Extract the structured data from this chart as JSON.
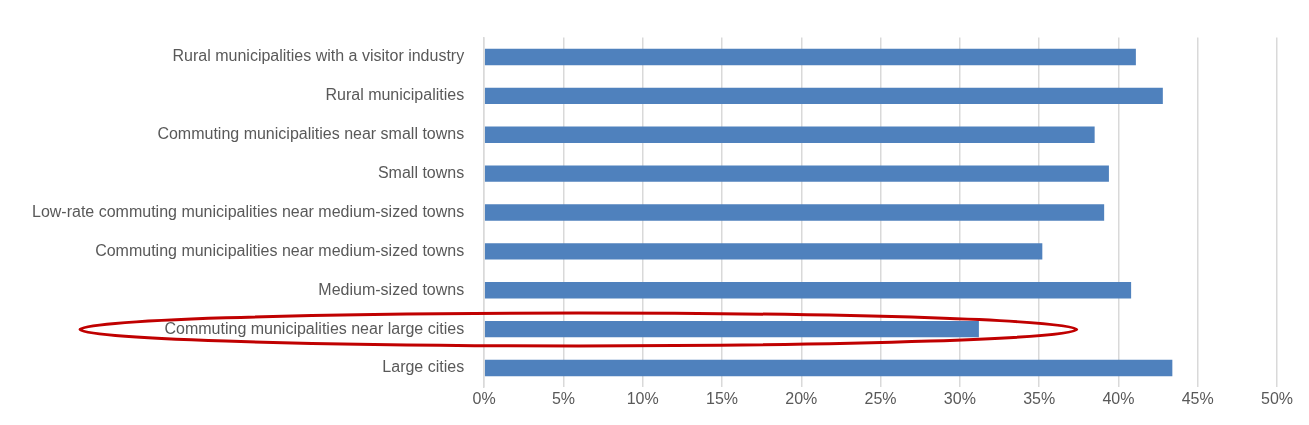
{
  "chart_data": {
    "type": "bar",
    "orientation": "horizontal",
    "categories": [
      "Rural municipalities with a visitor industry",
      "Rural municipalities",
      "Commuting municipalities near small towns",
      "Small towns",
      "Low-rate commuting municipalities near medium-sized towns",
      "Commuting municipalities near medium-sized towns",
      "Medium-sized towns",
      "Commuting municipalities near large cities",
      "Large cities"
    ],
    "values": [
      41.1,
      42.8,
      38.5,
      39.4,
      39.1,
      35.2,
      40.8,
      31.2,
      43.4
    ],
    "color": "#4f81bd",
    "xlim": [
      0,
      50
    ],
    "xticks": [
      {
        "value": 0,
        "label": "0%"
      },
      {
        "value": 5,
        "label": "5%"
      },
      {
        "value": 10,
        "label": "10%"
      },
      {
        "value": 15,
        "label": "15%"
      },
      {
        "value": 20,
        "label": "20%"
      },
      {
        "value": 25,
        "label": "25%"
      },
      {
        "value": 30,
        "label": "30%"
      },
      {
        "value": 35,
        "label": "35%"
      },
      {
        "value": 40,
        "label": "40%"
      },
      {
        "value": 45,
        "label": "45%"
      },
      {
        "value": 50,
        "label": "50%"
      }
    ],
    "grid": "x",
    "legend": false
  }
}
